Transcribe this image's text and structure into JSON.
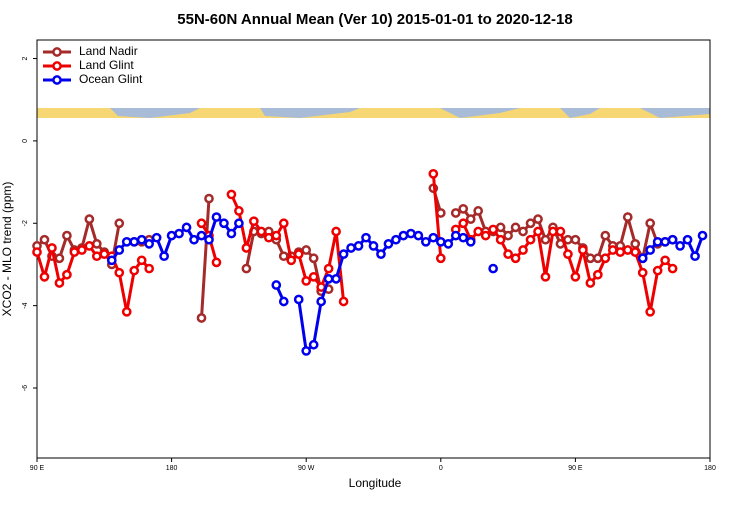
{
  "chart_data": {
    "type": "line",
    "title": "55N-60N Annual Mean (Ver 10)   2015-01-01 to 2020-12-18",
    "x_label": "Longitude",
    "y_label": "XCO2 - MLO trend (ppm)",
    "xlim": [
      90,
      540
    ],
    "xticks": [
      {
        "value": 90,
        "label": "90 E"
      },
      {
        "value": 180,
        "label": "180"
      },
      {
        "value": 270,
        "label": "90 W"
      },
      {
        "value": 360,
        "label": "0"
      },
      {
        "value": 450,
        "label": "90 E"
      },
      {
        "value": 540,
        "label": "180"
      }
    ],
    "ylim": [
      -7.7,
      2.45
    ],
    "yticks": [
      2,
      0,
      -2,
      -4,
      -6
    ],
    "legend": "top-left",
    "x": [
      90,
      95,
      100,
      105,
      110,
      115,
      120,
      125,
      130,
      135,
      140,
      145,
      150,
      155,
      160,
      165,
      170,
      175,
      180,
      185,
      190,
      195,
      200,
      205,
      210,
      215,
      220,
      225,
      230,
      235,
      240,
      245,
      250,
      255,
      260,
      265,
      270,
      275,
      280,
      285,
      290,
      295,
      300,
      305,
      310,
      315,
      320,
      325,
      330,
      335,
      340,
      345,
      350,
      355,
      360,
      365,
      370,
      375,
      380,
      385,
      390,
      395,
      400,
      405,
      410,
      415,
      420,
      425,
      430,
      435,
      440,
      445,
      450,
      455,
      460,
      465,
      470,
      475,
      480,
      485,
      490,
      495,
      500,
      505,
      510,
      515,
      520,
      525,
      530,
      535,
      540
    ],
    "series": [
      {
        "name": "Land Nadir",
        "color": "#a52a2a",
        "values": [
          -2.55,
          -2.4,
          -2.8,
          -2.85,
          -2.3,
          -2.65,
          -2.6,
          -1.9,
          -2.5,
          -2.7,
          -3.0,
          -2.0,
          null,
          -2.45,
          -2.45,
          -2.4,
          null,
          null,
          null,
          null,
          null,
          null,
          -4.3,
          -1.4,
          null,
          null,
          null,
          null,
          -3.1,
          -2.2,
          -2.25,
          -2.2,
          -2.4,
          -2.8,
          -2.8,
          -2.7,
          -2.65,
          -2.85,
          -3.65,
          -3.6,
          null,
          null,
          null,
          null,
          null,
          null,
          null,
          null,
          null,
          null,
          null,
          null,
          null,
          -1.15,
          -1.75,
          null,
          -1.75,
          -1.65,
          -1.9,
          -1.7,
          -2.2,
          -2.2,
          -2.1,
          -2.3,
          -2.1,
          -2.2,
          -2.0,
          -1.9,
          -2.4,
          -2.1,
          -2.5,
          -2.4,
          -2.4,
          -2.6,
          -2.85,
          -2.85,
          -2.3,
          -2.55,
          -2.55,
          -1.85,
          -2.5,
          -2.85,
          -2.0,
          -2.5,
          -2.45,
          -2.4,
          null,
          null,
          null,
          null,
          null
        ]
      },
      {
        "name": "Land Glint",
        "color": "#ee0000",
        "values": [
          -2.7,
          -3.3,
          -2.6,
          -3.45,
          -3.25,
          -2.7,
          -2.65,
          -2.55,
          -2.8,
          -2.75,
          -2.8,
          -3.2,
          -4.15,
          -3.15,
          -2.9,
          -3.1,
          null,
          null,
          null,
          null,
          null,
          null,
          -2.0,
          -2.3,
          -2.95,
          null,
          -1.3,
          -1.7,
          -2.6,
          -1.95,
          -2.2,
          -2.35,
          -2.3,
          -2.0,
          -2.9,
          -2.75,
          -3.4,
          -3.3,
          -3.55,
          -3.1,
          -2.2,
          -3.9,
          null,
          null,
          null,
          null,
          null,
          null,
          null,
          null,
          null,
          null,
          null,
          -0.8,
          -2.85,
          null,
          -2.15,
          -2.0,
          -2.4,
          -2.2,
          -2.3,
          -2.15,
          -2.4,
          -2.75,
          -2.85,
          -2.65,
          -2.4,
          -2.2,
          -3.3,
          -2.2,
          -2.2,
          -2.75,
          -3.3,
          -2.65,
          -3.45,
          -3.25,
          -2.85,
          -2.65,
          -2.7,
          -2.65,
          -2.7,
          -3.2,
          -4.15,
          -3.15,
          -2.9,
          -3.1,
          null,
          null,
          null,
          null,
          null
        ]
      },
      {
        "name": "Ocean Glint",
        "color": "#0000ee",
        "values": [
          null,
          null,
          null,
          null,
          null,
          null,
          null,
          null,
          null,
          null,
          -2.9,
          -2.65,
          -2.45,
          -2.45,
          -2.4,
          -2.5,
          -2.35,
          -2.8,
          -2.3,
          -2.25,
          -2.1,
          -2.4,
          -2.3,
          -2.4,
          -1.85,
          -2.0,
          -2.25,
          -2.0,
          null,
          null,
          null,
          null,
          -3.5,
          -3.9,
          null,
          -3.85,
          -5.1,
          -4.95,
          -3.9,
          -3.35,
          -3.35,
          -2.75,
          -2.6,
          -2.55,
          -2.35,
          -2.55,
          -2.75,
          -2.5,
          -2.4,
          -2.3,
          -2.25,
          -2.3,
          -2.45,
          -2.35,
          -2.45,
          -2.5,
          -2.3,
          -2.35,
          -2.45,
          null,
          null,
          -3.1,
          null,
          null,
          null,
          null,
          null,
          null,
          null,
          null,
          null,
          null,
          null,
          null,
          null,
          null,
          null,
          null,
          null,
          null,
          null,
          -2.85,
          -2.65,
          -2.45,
          -2.45,
          -2.4,
          -2.55,
          -2.4,
          -2.8,
          -2.3,
          null
        ]
      }
    ]
  }
}
